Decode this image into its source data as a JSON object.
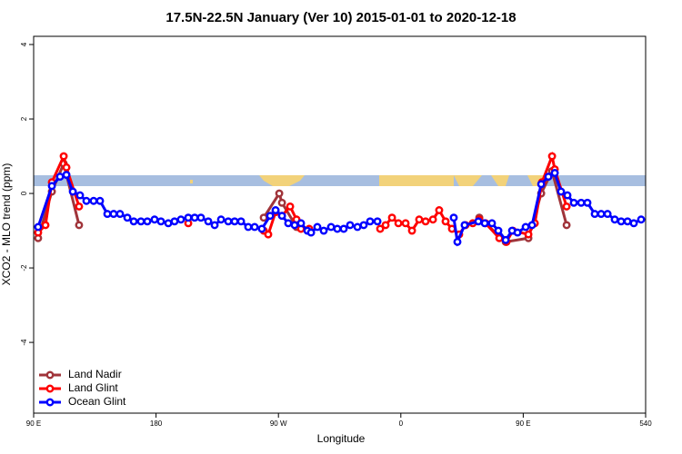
{
  "chart_data": {
    "type": "line",
    "title": "17.5N-22.5N January (Ver 10)   2015-01-01 to 2020-12-18",
    "x_label": "Longitude",
    "y_label": "XCO2 - MLO trend (ppm)",
    "xlim": [
      90,
      540
    ],
    "xticks": [
      {
        "value": 90,
        "label": "90 E"
      },
      180,
      {
        "value": 270,
        "label": "90 W"
      },
      {
        "value": 360,
        "label": "0"
      },
      {
        "value": 450,
        "label": "90 E"
      },
      540
    ],
    "ylim": [
      -5.9,
      4.22
    ],
    "yticks": [
      -4,
      -2,
      0,
      2,
      4
    ],
    "legend": "bottom-left",
    "series": [
      {
        "name": "Land Nadir",
        "color": "#a0343a",
        "x": [
          93.3,
          103.4,
          112.1,
          123.4,
          200,
          259.2,
          270.6,
          272.6,
          283.3,
          400,
          417.7,
          437.1,
          453.8,
          463.2,
          471.2,
          481.9
        ],
        "values": [
          -1.2,
          0.05,
          0.8,
          -0.85,
          null,
          -0.65,
          0.0,
          -0.25,
          -0.9,
          null,
          -0.65,
          -1.3,
          -1.2,
          0.0,
          0.6,
          -0.85
        ]
      },
      {
        "name": "Land Glint",
        "color": "#ff0000",
        "x": [
          93.3,
          98.7,
          103.4,
          112.1,
          114.1,
          123.4,
          150,
          203.7,
          250,
          259.2,
          262.5,
          267.9,
          272.6,
          278.6,
          283.3,
          286.6,
          292.6,
          320,
          344.8,
          348.8,
          353.5,
          358.2,
          363.5,
          368.2,
          373.5,
          378.2,
          383.6,
          388.2,
          392.9,
          397.6,
          402.9,
          407.6,
          412.9,
          417.7,
          422.3,
          432.4,
          437.7,
          442.4,
          453.8,
          458.5,
          463.8,
          471.2,
          473.2,
          481.9
        ],
        "values": [
          -1.05,
          -0.85,
          0.3,
          1.0,
          0.7,
          -0.35,
          null,
          -0.8,
          null,
          -1.0,
          -1.1,
          -0.5,
          -0.6,
          -0.35,
          -0.7,
          -0.95,
          -0.95,
          null,
          -0.95,
          -0.85,
          -0.65,
          -0.8,
          -0.8,
          -1.0,
          -0.7,
          -0.75,
          -0.7,
          -0.45,
          -0.75,
          -0.95,
          -1.1,
          -0.85,
          -0.8,
          -0.7,
          -0.8,
          -1.2,
          -1.3,
          -1.0,
          -1.1,
          -0.8,
          0.3,
          1.0,
          0.65,
          -0.35
        ]
      },
      {
        "name": "Ocean Glint",
        "color": "#0000ff",
        "x": [
          93.3,
          103.4,
          109.4,
          114.1,
          118.8,
          124.1,
          128.8,
          134.1,
          138.8,
          144.2,
          148.8,
          153.5,
          158.9,
          163.6,
          168.9,
          173.6,
          178.9,
          183.6,
          189.0,
          193.6,
          198.3,
          203.7,
          208.4,
          213.0,
          218.4,
          223.1,
          227.8,
          233.1,
          237.8,
          242.5,
          247.8,
          252.5,
          257.8,
          263.9,
          267.9,
          272.6,
          277.2,
          281.9,
          286.6,
          291.3,
          294.0,
          298.6,
          303.3,
          308.7,
          313.3,
          318.0,
          322.7,
          328.1,
          332.7,
          337.4,
          342.8,
          370,
          398.9,
          401.6,
          406.9,
          417.0,
          421.7,
          427.0,
          431.7,
          437.1,
          441.8,
          445.8,
          451.8,
          456.5,
          463.2,
          468.5,
          473.2,
          477.8,
          482.5,
          487.2,
          492.6,
          497.2,
          502.6,
          507.3,
          512.0,
          517.3,
          522.0,
          526.7,
          531.3,
          536.7
        ],
        "values": [
          -0.9,
          0.2,
          0.45,
          0.5,
          0.05,
          -0.05,
          -0.2,
          -0.2,
          -0.2,
          -0.55,
          -0.55,
          -0.55,
          -0.65,
          -0.75,
          -0.75,
          -0.75,
          -0.7,
          -0.75,
          -0.8,
          -0.75,
          -0.7,
          -0.65,
          -0.65,
          -0.65,
          -0.75,
          -0.85,
          -0.7,
          -0.75,
          -0.75,
          -0.75,
          -0.9,
          -0.9,
          -0.95,
          -0.6,
          -0.45,
          -0.6,
          -0.8,
          -0.85,
          -0.8,
          -1.0,
          -1.05,
          -0.9,
          -1.0,
          -0.9,
          -0.95,
          -0.95,
          -0.85,
          -0.9,
          -0.85,
          -0.75,
          -0.75,
          null,
          -0.65,
          -1.3,
          -0.85,
          -0.75,
          -0.8,
          -0.8,
          -1.0,
          -1.25,
          -1.0,
          -1.05,
          -0.9,
          -0.85,
          0.25,
          0.45,
          0.55,
          0.05,
          -0.05,
          -0.25,
          -0.25,
          -0.25,
          -0.55,
          -0.55,
          -0.55,
          -0.7,
          -0.75,
          -0.75,
          -0.8,
          -0.7
        ]
      }
    ]
  }
}
